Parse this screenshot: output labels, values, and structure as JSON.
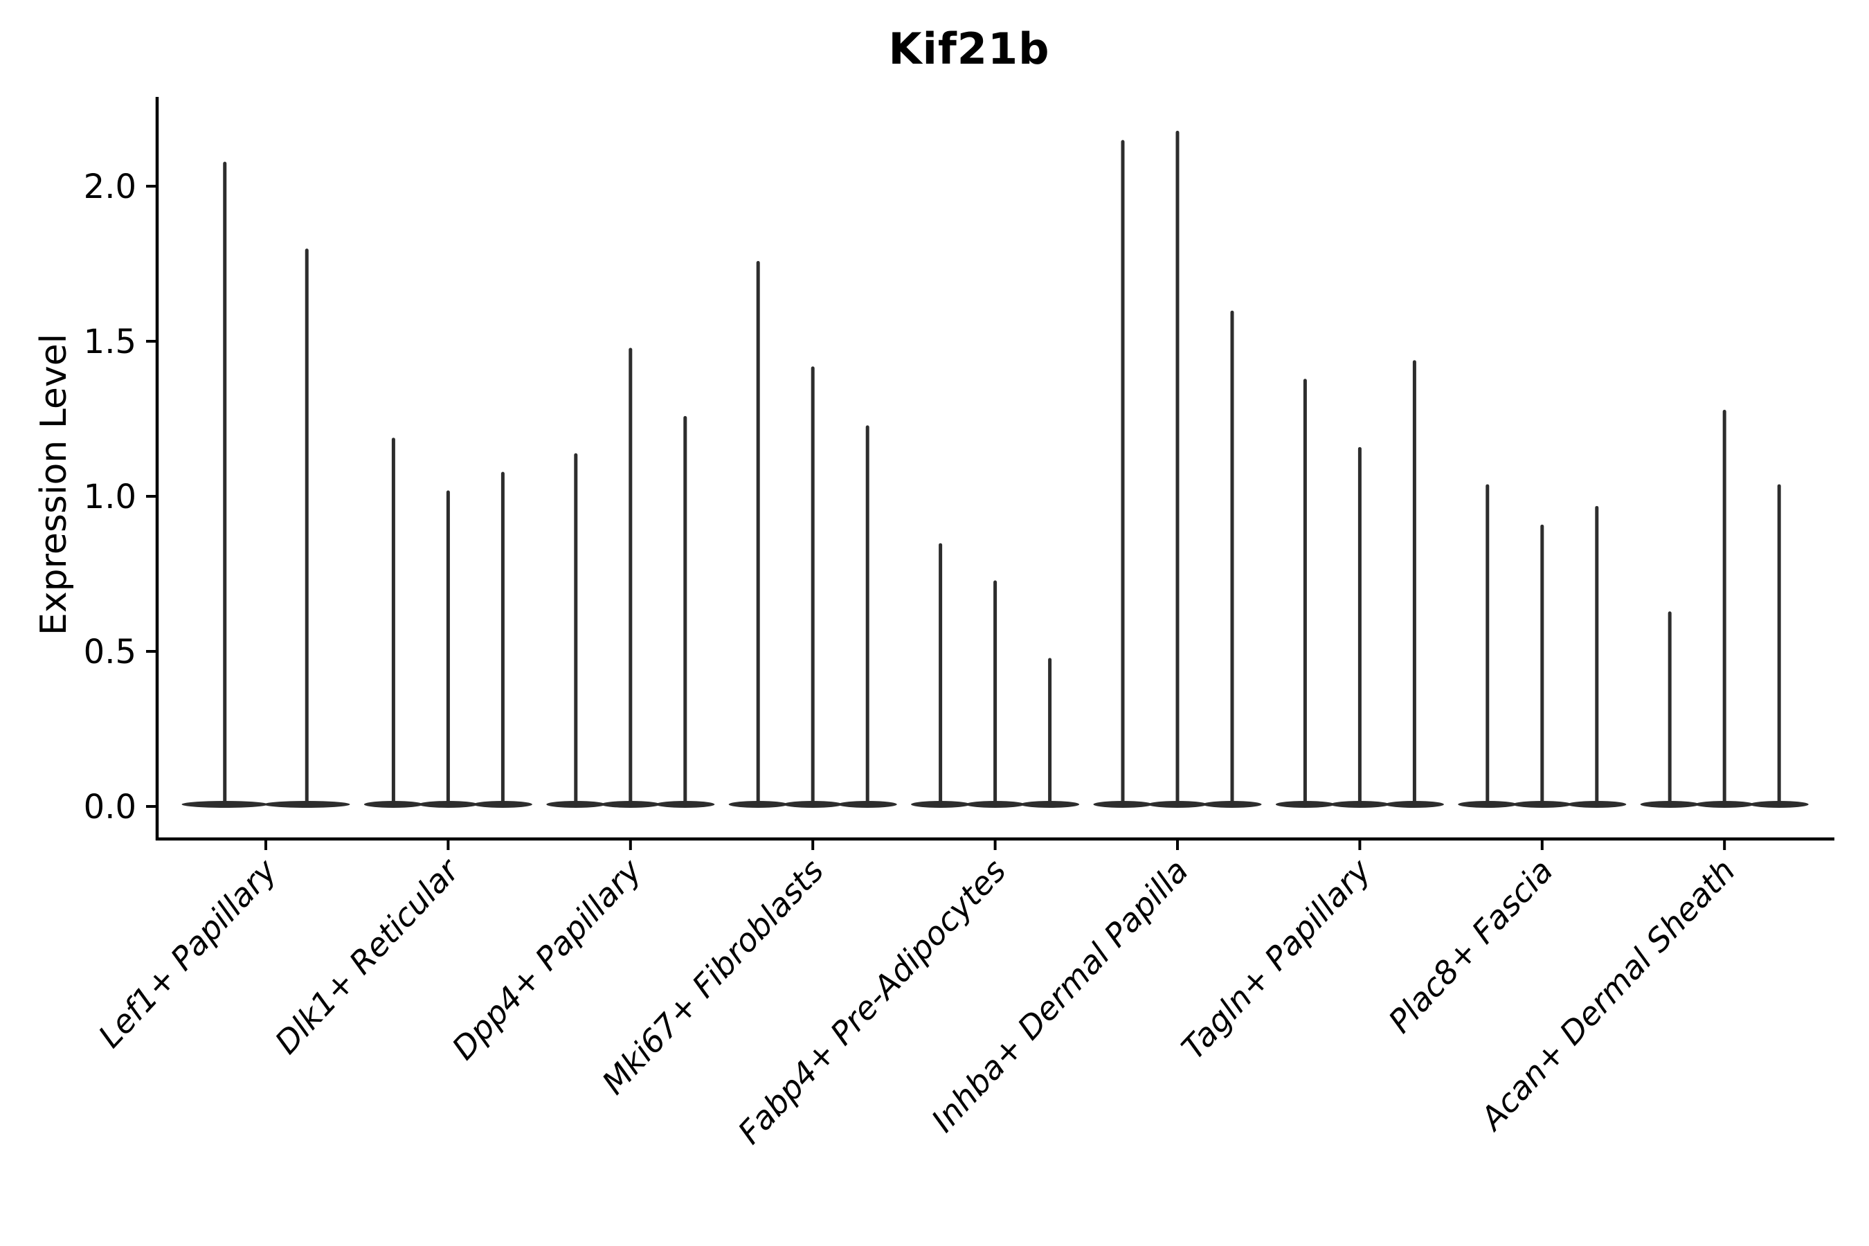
{
  "chart_data": {
    "type": "violin",
    "title": "Kif21b",
    "xlabel": "",
    "ylabel": "Expression Level",
    "ylim": [
      -0.1,
      2.29
    ],
    "yticks": [
      0,
      0.5,
      1,
      1.5,
      2
    ],
    "yticklabels": [
      "0.0",
      "0.5",
      "1.0",
      "1.5",
      "2.0"
    ],
    "grid": false,
    "legend": false,
    "x_tick_rotation_deg": 47,
    "categories": [
      "Lef1+ Papillary",
      "Dlk1+ Reticular",
      "Dpp4+ Papillary",
      "Mki67+ Fibroblasts",
      "Fabp4+ Pre-Adipocytes",
      "Inhba+ Dermal Papilla",
      "Tagln+ Papillary",
      "Plac8+ Fascia",
      "Acan+ Dermal Sheath"
    ],
    "violins": [
      {
        "category": "Lef1+ Papillary",
        "spike_maxima": [
          2.08,
          1.8
        ]
      },
      {
        "category": "Dlk1+ Reticular",
        "spike_maxima": [
          1.19,
          1.02,
          1.08
        ]
      },
      {
        "category": "Dpp4+ Papillary",
        "spike_maxima": [
          1.14,
          1.48,
          1.26
        ]
      },
      {
        "category": "Mki67+ Fibroblasts",
        "spike_maxima": [
          1.76,
          1.42,
          1.23
        ]
      },
      {
        "category": "Fabp4+ Pre-Adipocytes",
        "spike_maxima": [
          0.85,
          0.73,
          0.48
        ]
      },
      {
        "category": "Inhba+ Dermal Papilla",
        "spike_maxima": [
          2.15,
          2.18,
          1.6
        ]
      },
      {
        "category": "Tagln+ Papillary",
        "spike_maxima": [
          1.38,
          1.16,
          1.44
        ]
      },
      {
        "category": "Plac8+ Fascia",
        "spike_maxima": [
          1.04,
          0.91,
          0.97
        ]
      },
      {
        "category": "Acan+ Dermal Sheath",
        "spike_maxima": [
          0.63,
          1.28,
          1.04
        ]
      }
    ],
    "description": "Each violin collapses to a thin vertical spike (max expression) rising from a wide flat density base at 0.",
    "colors": {
      "violin": "#2d2d2d",
      "axis": "#000000",
      "text": "#000000",
      "background": "#ffffff"
    }
  }
}
